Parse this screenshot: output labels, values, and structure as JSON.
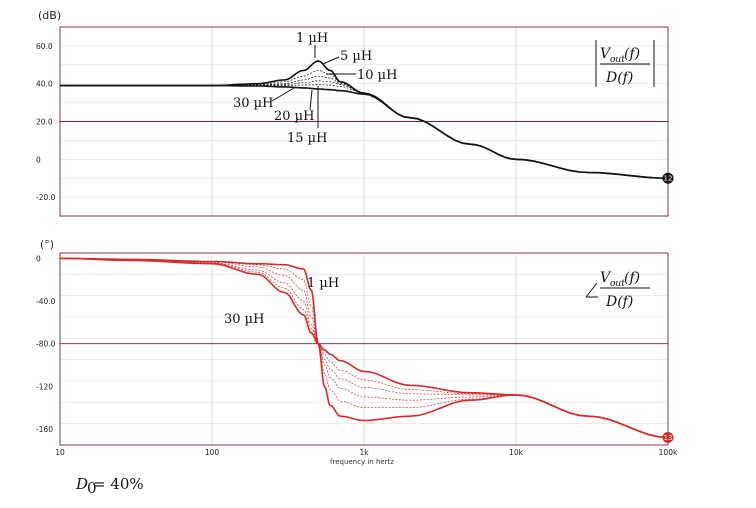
{
  "chart_data": [
    {
      "type": "line",
      "panel": "magnitude",
      "ylabel": "(dB)",
      "x_scale": "log",
      "xlim": [
        10,
        100000
      ],
      "ylim": [
        -30,
        70
      ],
      "yticks": [
        -20,
        0,
        20,
        40,
        60
      ],
      "ytick_labels": [
        "-20.0",
        "0",
        "20.0",
        "40.0",
        "60.0"
      ],
      "grid": true,
      "curve_color": "#111111",
      "series": [
        {
          "name": "1 µH",
          "x": [
            10,
            100,
            200,
            300,
            400,
            500,
            600,
            700,
            1000,
            2000,
            5000,
            10000,
            30000,
            100000
          ],
          "y": [
            39,
            39,
            40,
            42,
            47,
            52,
            47,
            41,
            35,
            22,
            8,
            0,
            -7,
            -10
          ]
        },
        {
          "name": "5 µH",
          "x": [
            10,
            100,
            200,
            300,
            400,
            500,
            600,
            700,
            1000,
            2000,
            5000,
            10000,
            30000,
            100000
          ],
          "y": [
            39,
            39,
            39.5,
            41,
            44,
            47,
            45,
            40.5,
            35,
            22,
            8,
            0,
            -7,
            -10
          ]
        },
        {
          "name": "10 µH",
          "x": [
            10,
            100,
            200,
            300,
            400,
            500,
            600,
            700,
            1000,
            2000,
            5000,
            10000,
            30000,
            100000
          ],
          "y": [
            39,
            39,
            39.3,
            40,
            42,
            44,
            43,
            40,
            35,
            22,
            8,
            0,
            -7,
            -10
          ]
        },
        {
          "name": "15 µH",
          "x": [
            10,
            100,
            200,
            300,
            400,
            500,
            600,
            700,
            1000,
            2000,
            5000,
            10000,
            30000,
            100000
          ],
          "y": [
            39,
            39,
            39,
            39.5,
            40.5,
            41.5,
            41,
            39.5,
            35,
            22,
            8,
            0,
            -7,
            -10
          ]
        },
        {
          "name": "20 µH",
          "x": [
            10,
            100,
            200,
            300,
            400,
            500,
            600,
            700,
            1000,
            2000,
            5000,
            10000,
            30000,
            100000
          ],
          "y": [
            39,
            39,
            39,
            39,
            39.3,
            39.5,
            39.3,
            38.5,
            35,
            22,
            8,
            0,
            -7,
            -10
          ]
        },
        {
          "name": "30 µH",
          "x": [
            10,
            100,
            200,
            300,
            400,
            500,
            600,
            700,
            1000,
            2000,
            5000,
            10000,
            30000,
            100000
          ],
          "y": [
            39,
            39,
            38.8,
            38.3,
            37.8,
            37.2,
            36.8,
            36.3,
            34.5,
            22,
            8,
            0,
            -7,
            -10
          ]
        }
      ],
      "annotations": [
        "1 µH",
        "5 µH",
        "10 µH",
        "30 µH",
        "20 µH",
        "15 µH"
      ],
      "end_marker": "12"
    },
    {
      "type": "line",
      "panel": "phase",
      "ylabel": "(°)",
      "xlabel": "frequency in hertz",
      "x_scale": "log",
      "xlim": [
        10,
        100000
      ],
      "ylim": [
        -175,
        5
      ],
      "yticks": [
        -160,
        -120,
        -80,
        -40,
        0
      ],
      "ytick_labels": [
        "-160",
        "-120",
        "-80.0",
        "-40.0",
        "0"
      ],
      "xticks": [
        10,
        100,
        1000,
        10000,
        100000
      ],
      "xtick_labels": [
        "10",
        "100",
        "1k",
        "10k",
        "100k"
      ],
      "grid": true,
      "curve_color": "#d42a2a",
      "series": [
        {
          "name": "1 µH",
          "x": [
            10,
            30,
            100,
            200,
            300,
            400,
            450,
            500,
            550,
            600,
            700,
            1000,
            2000,
            5000,
            10000,
            30000,
            100000
          ],
          "y": [
            0,
            -1,
            -3,
            -5,
            -6,
            -10,
            -30,
            -80,
            -120,
            -138,
            -148,
            -152,
            -148,
            -133,
            -128,
            -148,
            -168
          ]
        },
        {
          "name": "5 µH",
          "x": [
            10,
            30,
            100,
            200,
            300,
            400,
            450,
            500,
            550,
            600,
            700,
            1000,
            2000,
            5000,
            10000,
            30000,
            100000
          ],
          "y": [
            0,
            -1,
            -3,
            -6,
            -10,
            -20,
            -45,
            -80,
            -108,
            -123,
            -134,
            -140,
            -140,
            -132,
            -128,
            -148,
            -168
          ]
        },
        {
          "name": "10 µH",
          "x": [
            10,
            30,
            100,
            200,
            300,
            400,
            450,
            500,
            550,
            600,
            700,
            1000,
            2000,
            5000,
            10000,
            30000,
            100000
          ],
          "y": [
            0,
            -1,
            -3,
            -8,
            -16,
            -30,
            -55,
            -80,
            -100,
            -112,
            -122,
            -130,
            -133,
            -130,
            -128,
            -148,
            -168
          ]
        },
        {
          "name": "15 µH",
          "x": [
            10,
            30,
            100,
            200,
            300,
            400,
            450,
            500,
            550,
            600,
            700,
            1000,
            2000,
            5000,
            10000,
            30000,
            100000
          ],
          "y": [
            0,
            -1,
            -4,
            -11,
            -23,
            -40,
            -62,
            -80,
            -95,
            -104,
            -113,
            -121,
            -127,
            -128,
            -128,
            -148,
            -168
          ]
        },
        {
          "name": "20 µH",
          "x": [
            10,
            30,
            100,
            200,
            300,
            400,
            450,
            500,
            550,
            600,
            700,
            1000,
            2000,
            5000,
            10000,
            30000,
            100000
          ],
          "y": [
            0,
            -1,
            -4,
            -13,
            -28,
            -48,
            -66,
            -80,
            -90,
            -97,
            -105,
            -114,
            -123,
            -127,
            -128,
            -148,
            -168
          ]
        },
        {
          "name": "30 µH",
          "x": [
            10,
            30,
            100,
            200,
            300,
            400,
            450,
            500,
            550,
            600,
            700,
            1000,
            2000,
            5000,
            10000,
            30000,
            100000
          ],
          "y": [
            0,
            -2,
            -5,
            -15,
            -32,
            -53,
            -70,
            -80,
            -86,
            -90,
            -96,
            -106,
            -119,
            -126,
            -128,
            -148,
            -168
          ]
        }
      ],
      "annotations": [
        "1 µH",
        "30 µH"
      ],
      "end_marker": "13"
    }
  ],
  "labels": {
    "mag_unit": "(dB)",
    "phase_unit": "(°)",
    "x_title": "frequency in hertz",
    "mag_ann": {
      "l1": "1 µH",
      "l5": "5 µH",
      "l10": "10 µH",
      "l30": "30 µH",
      "l20": "20 µH",
      "l15": "15 µH"
    },
    "phase_ann": {
      "l1": "1 µH",
      "l30": "30 µH"
    },
    "eq": {
      "num_v": "V",
      "num_sub": "out",
      "num_f": "(f)",
      "den": "D(f)"
    },
    "caption_main": "D",
    "caption_sub": "0",
    "caption_rest": " = 40%"
  },
  "colors": {
    "grid_frame": "#7a1f3a",
    "grid_minor": "#e2e2e2",
    "mag_curve": "#111111",
    "phase_curve": "#d42a2a"
  }
}
